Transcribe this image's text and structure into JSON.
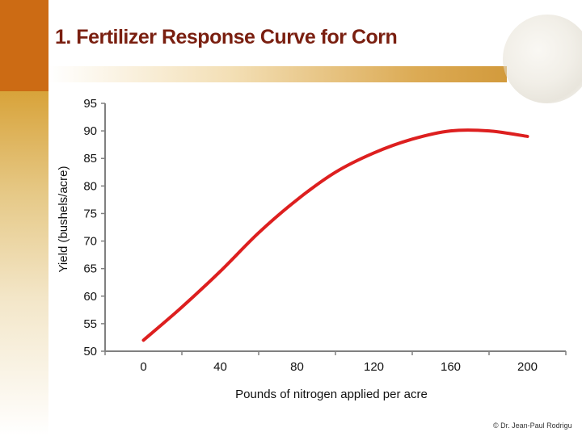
{
  "slide_title": "1. Fertilizer Response Curve for Corn",
  "copyright": "© Dr. Jean-Paul Rodrigu",
  "colors": {
    "line": "#dd1f1f",
    "axis": "#808080",
    "title": "#7a1f10",
    "accent": "#cc6b14"
  },
  "chart_data": {
    "type": "line",
    "title": "",
    "xlabel": "Pounds of nitrogen applied per acre",
    "ylabel": "Yield (bushels/acre)",
    "categories": [
      0,
      40,
      80,
      120,
      160,
      200
    ],
    "x": [
      0,
      20,
      40,
      60,
      80,
      100,
      120,
      140,
      160,
      180,
      200
    ],
    "series": [
      {
        "values": [
          52,
          58,
          64.5,
          71.5,
          77.5,
          82.5,
          86,
          88.5,
          90,
          90,
          89
        ]
      }
    ],
    "xlim": [
      0,
      200
    ],
    "ylim": [
      50,
      95
    ],
    "yticks": [
      50,
      55,
      60,
      65,
      70,
      75,
      80,
      85,
      90,
      95
    ],
    "grid": false,
    "legend": "none"
  }
}
